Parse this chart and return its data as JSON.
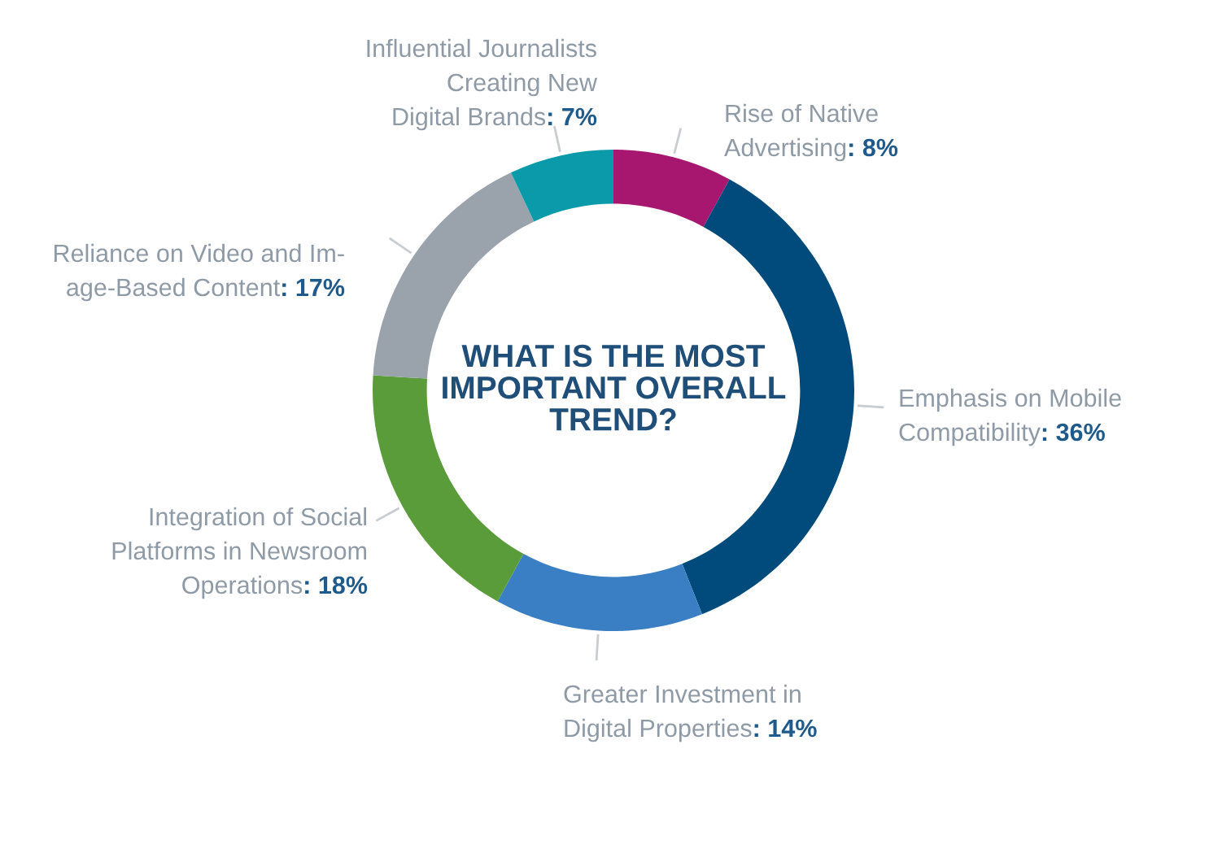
{
  "chart_data": {
    "type": "donut",
    "title": "WHAT IS THE MOST\nIMPORTANT OVERALL\nTREND?",
    "categories": [
      "Rise of Native\nAdvertising",
      "Emphasis on Mobile\nCompatibility",
      "Greater Investment in\nDigital Properties",
      "Integration of Social\nPlatforms in Newsroom\nOperations",
      "Reliance on Video and Im-\nage-Based Content",
      "Influential Journalists\nCreating New\nDigital Brands"
    ],
    "values": [
      8,
      36,
      14,
      18,
      17,
      7
    ],
    "value_labels": [
      ": 8%",
      ": 36%",
      ": 14%",
      ": 18%",
      ": 17%",
      ": 7%"
    ],
    "colors": [
      "#a8176f",
      "#004a7c",
      "#3a7fc4",
      "#5a9c3a",
      "#9aa3ab",
      "#0a9aaa"
    ]
  }
}
